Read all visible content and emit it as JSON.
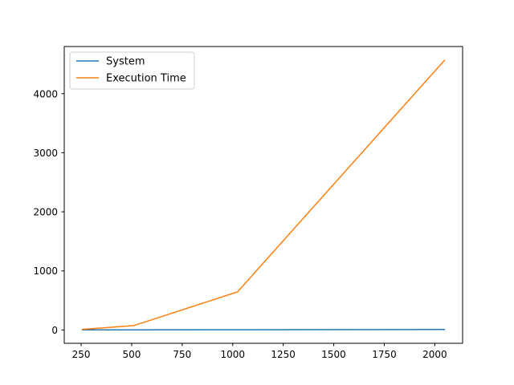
{
  "chart_data": {
    "type": "line",
    "x": [
      256,
      512,
      1024,
      2048
    ],
    "series": [
      {
        "name": "System",
        "values": [
          2,
          2,
          4,
          8
        ],
        "color": "#1f77b4"
      },
      {
        "name": "Execution Time",
        "values": [
          10,
          75,
          645,
          4565
        ],
        "color": "#ff7f0e"
      }
    ],
    "title": "",
    "xlabel": "",
    "ylabel": "",
    "xlim": [
      166.4,
      2137.6
    ],
    "ylim": [
      -225.75,
      4797.75
    ],
    "xticks": [
      250,
      500,
      750,
      1000,
      1250,
      1500,
      1750,
      2000
    ],
    "yticks": [
      0,
      1000,
      2000,
      3000,
      4000
    ],
    "grid": false,
    "legend_position": "top-left"
  }
}
